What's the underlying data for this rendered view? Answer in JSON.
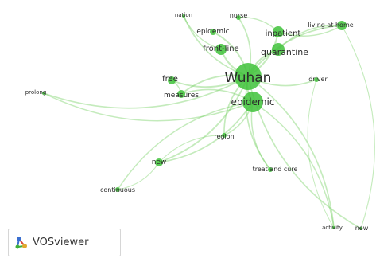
{
  "app": {
    "name": "VOSviewer",
    "logo_icon": "vosviewer-logo-icon"
  },
  "colors": {
    "cluster": "#3fc23a",
    "edge": "#7cd26a",
    "label": "#2b2b2b"
  },
  "terms": [
    {
      "id": "wuhan",
      "label": "Wuhan",
      "weight": 5
    },
    {
      "id": "epidemic_main",
      "label": "epidemic",
      "weight": 4
    },
    {
      "id": "quarantine",
      "label": "quarantine",
      "weight": 3
    },
    {
      "id": "inpatient",
      "label": "inpatient",
      "weight": 3
    },
    {
      "id": "front_line",
      "label": "front-line",
      "weight": 3
    },
    {
      "id": "epidemic_small",
      "label": "epidemic",
      "weight": 2
    },
    {
      "id": "nation",
      "label": "nation",
      "weight": 1
    },
    {
      "id": "nurse",
      "label": "nurse",
      "weight": 1
    },
    {
      "id": "living_at_home",
      "label": "living at home",
      "weight": 2
    },
    {
      "id": "driver",
      "label": "driver",
      "weight": 1
    },
    {
      "id": "free",
      "label": "free",
      "weight": 2
    },
    {
      "id": "measures",
      "label": "measures",
      "weight": 2
    },
    {
      "id": "prolong",
      "label": "prolong",
      "weight": 1
    },
    {
      "id": "region",
      "label": "region",
      "weight": 1
    },
    {
      "id": "new_mid",
      "label": "new",
      "weight": 2
    },
    {
      "id": "treat_and_cure",
      "label": "treat and cure",
      "weight": 1
    },
    {
      "id": "continuous",
      "label": "continuous",
      "weight": 1
    },
    {
      "id": "activity",
      "label": "activity",
      "weight": 1
    },
    {
      "id": "new_right",
      "label": "new",
      "weight": 1
    }
  ],
  "links": [
    [
      "wuhan",
      "epidemic_main"
    ],
    [
      "wuhan",
      "quarantine"
    ],
    [
      "wuhan",
      "inpatient"
    ],
    [
      "wuhan",
      "front_line"
    ],
    [
      "wuhan",
      "epidemic_small"
    ],
    [
      "wuhan",
      "nation"
    ],
    [
      "wuhan",
      "nurse"
    ],
    [
      "wuhan",
      "living_at_home"
    ],
    [
      "wuhan",
      "driver"
    ],
    [
      "wuhan",
      "free"
    ],
    [
      "wuhan",
      "measures"
    ],
    [
      "wuhan",
      "prolong"
    ],
    [
      "wuhan",
      "region"
    ],
    [
      "wuhan",
      "new_mid"
    ],
    [
      "wuhan",
      "treat_and_cure"
    ],
    [
      "wuhan",
      "activity"
    ],
    [
      "wuhan",
      "new_right"
    ],
    [
      "epidemic_main",
      "new_mid"
    ],
    [
      "epidemic_main",
      "continuous"
    ],
    [
      "epidemic_main",
      "activity"
    ],
    [
      "epidemic_main",
      "treat_and_cure"
    ],
    [
      "epidemic_main",
      "region"
    ],
    [
      "epidemic_main",
      "measures"
    ],
    [
      "quarantine",
      "living_at_home"
    ],
    [
      "inpatient",
      "living_at_home"
    ],
    [
      "new_mid",
      "continuous"
    ],
    [
      "region",
      "new_mid"
    ],
    [
      "free",
      "measures"
    ],
    [
      "prolong",
      "epidemic_main"
    ],
    [
      "living_at_home",
      "new_right"
    ],
    [
      "driver",
      "activity"
    ],
    [
      "nurse",
      "inpatient"
    ],
    [
      "nation",
      "front_line"
    ]
  ]
}
